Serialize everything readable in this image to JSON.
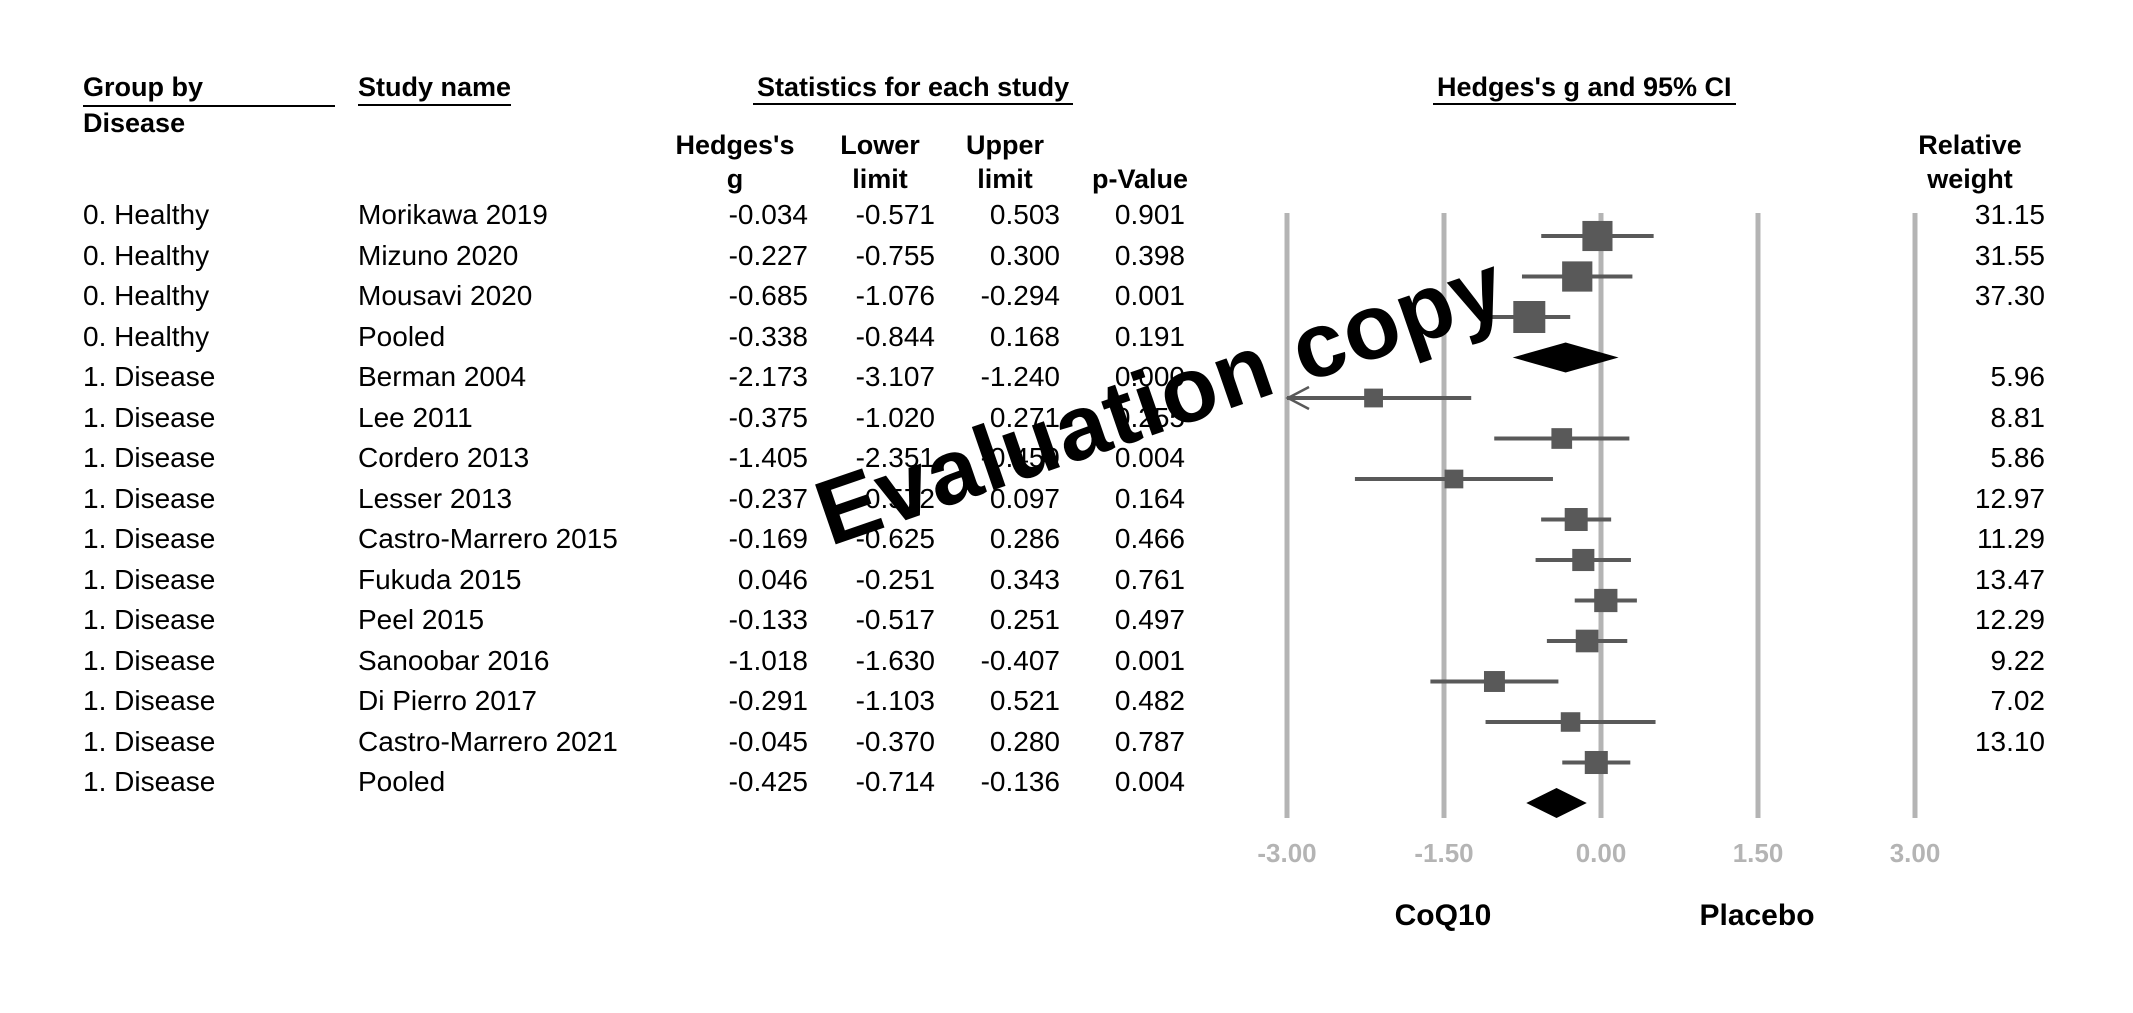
{
  "headers": {
    "group_by": "Group by",
    "group_by_sub": "Disease",
    "study_name": "Study name",
    "stats_title": "Statistics for each study",
    "forest_title": "Hedges's g and 95% CI",
    "col_g": "Hedges's g",
    "col_g_line1": "Hedges's",
    "col_g_line2": "g",
    "col_lower_line1": "Lower",
    "col_lower_line2": "limit",
    "col_upper_line1": "Upper",
    "col_upper_line2": "limit",
    "col_p": "p-Value",
    "col_weight_line1": "Relative",
    "col_weight_line2": "weight"
  },
  "chart_data": {
    "type": "forest",
    "xlim": [
      -3.0,
      3.0
    ],
    "x_ticks": [
      "-3.00",
      "-1.50",
      "0.00",
      "1.50",
      "3.00"
    ],
    "x_tick_values": [
      -3.0,
      -1.5,
      0.0,
      1.5,
      3.0
    ],
    "left_label": "CoQ10",
    "right_label": "Placebo",
    "rows": [
      {
        "group": "0. Healthy",
        "study": "Morikawa 2019",
        "g": "-0.034",
        "lower": "-0.571",
        "upper": "0.503",
        "p": "0.901",
        "weight": "31.15",
        "pooled": false,
        "gv": -0.034,
        "lv": -0.571,
        "uv": 0.503,
        "wv": 31.15
      },
      {
        "group": "0. Healthy",
        "study": "Mizuno 2020",
        "g": "-0.227",
        "lower": "-0.755",
        "upper": "0.300",
        "p": "0.398",
        "weight": "31.55",
        "pooled": false,
        "gv": -0.227,
        "lv": -0.755,
        "uv": 0.3,
        "wv": 31.55
      },
      {
        "group": "0. Healthy",
        "study": "Mousavi 2020",
        "g": "-0.685",
        "lower": "-1.076",
        "upper": "-0.294",
        "p": "0.001",
        "weight": "37.30",
        "pooled": false,
        "gv": -0.685,
        "lv": -1.076,
        "uv": -0.294,
        "wv": 37.3
      },
      {
        "group": "0. Healthy",
        "study": "Pooled",
        "g": "-0.338",
        "lower": "-0.844",
        "upper": "0.168",
        "p": "0.191",
        "weight": "",
        "pooled": true,
        "gv": -0.338,
        "lv": -0.844,
        "uv": 0.168,
        "wv": 0
      },
      {
        "group": "1. Disease",
        "study": "Berman 2004",
        "g": "-2.173",
        "lower": "-3.107",
        "upper": "-1.240",
        "p": "0.000",
        "weight": "5.96",
        "pooled": false,
        "gv": -2.173,
        "lv": -3.107,
        "uv": -1.24,
        "wv": 5.96
      },
      {
        "group": "1. Disease",
        "study": "Lee 2011",
        "g": "-0.375",
        "lower": "-1.020",
        "upper": "0.271",
        "p": "0.255",
        "weight": "8.81",
        "pooled": false,
        "gv": -0.375,
        "lv": -1.02,
        "uv": 0.271,
        "wv": 8.81
      },
      {
        "group": "1. Disease",
        "study": "Cordero 2013",
        "g": "-1.405",
        "lower": "-2.351",
        "upper": "-0.459",
        "p": "0.004",
        "weight": "5.86",
        "pooled": false,
        "gv": -1.405,
        "lv": -2.351,
        "uv": -0.459,
        "wv": 5.86
      },
      {
        "group": "1. Disease",
        "study": "Lesser 2013",
        "g": "-0.237",
        "lower": "-0.572",
        "upper": "0.097",
        "p": "0.164",
        "weight": "12.97",
        "pooled": false,
        "gv": -0.237,
        "lv": -0.572,
        "uv": 0.097,
        "wv": 12.97
      },
      {
        "group": "1. Disease",
        "study": "Castro-Marrero 2015",
        "g": "-0.169",
        "lower": "-0.625",
        "upper": "0.286",
        "p": "0.466",
        "weight": "11.29",
        "pooled": false,
        "gv": -0.169,
        "lv": -0.625,
        "uv": 0.286,
        "wv": 11.29
      },
      {
        "group": "1. Disease",
        "study": "Fukuda 2015",
        "g": "0.046",
        "lower": "-0.251",
        "upper": "0.343",
        "p": "0.761",
        "weight": "13.47",
        "pooled": false,
        "gv": 0.046,
        "lv": -0.251,
        "uv": 0.343,
        "wv": 13.47
      },
      {
        "group": "1. Disease",
        "study": "Peel 2015",
        "g": "-0.133",
        "lower": "-0.517",
        "upper": "0.251",
        "p": "0.497",
        "weight": "12.29",
        "pooled": false,
        "gv": -0.133,
        "lv": -0.517,
        "uv": 0.251,
        "wv": 12.29
      },
      {
        "group": "1. Disease",
        "study": "Sanoobar 2016",
        "g": "-1.018",
        "lower": "-1.630",
        "upper": "-0.407",
        "p": "0.001",
        "weight": "9.22",
        "pooled": false,
        "gv": -1.018,
        "lv": -1.63,
        "uv": -0.407,
        "wv": 9.22
      },
      {
        "group": "1. Disease",
        "study": "Di Pierro 2017",
        "g": "-0.291",
        "lower": "-1.103",
        "upper": "0.521",
        "p": "0.482",
        "weight": "7.02",
        "pooled": false,
        "gv": -0.291,
        "lv": -1.103,
        "uv": 0.521,
        "wv": 7.02
      },
      {
        "group": "1. Disease",
        "study": "Castro-Marrero 2021",
        "g": "-0.045",
        "lower": "-0.370",
        "upper": "0.280",
        "p": "0.787",
        "weight": "13.10",
        "pooled": false,
        "gv": -0.045,
        "lv": -0.37,
        "uv": 0.28,
        "wv": 13.1
      },
      {
        "group": "1. Disease",
        "study": "Pooled",
        "g": "-0.425",
        "lower": "-0.714",
        "upper": "-0.136",
        "p": "0.004",
        "weight": "",
        "pooled": true,
        "gv": -0.425,
        "lv": -0.714,
        "uv": -0.136,
        "wv": 0
      }
    ]
  },
  "watermark": "Evaluation copy",
  "colors": {
    "grid": "#b4b4b4",
    "marker": "#595959",
    "pooled": "#000000",
    "tick_label": "#b4b4b4"
  }
}
